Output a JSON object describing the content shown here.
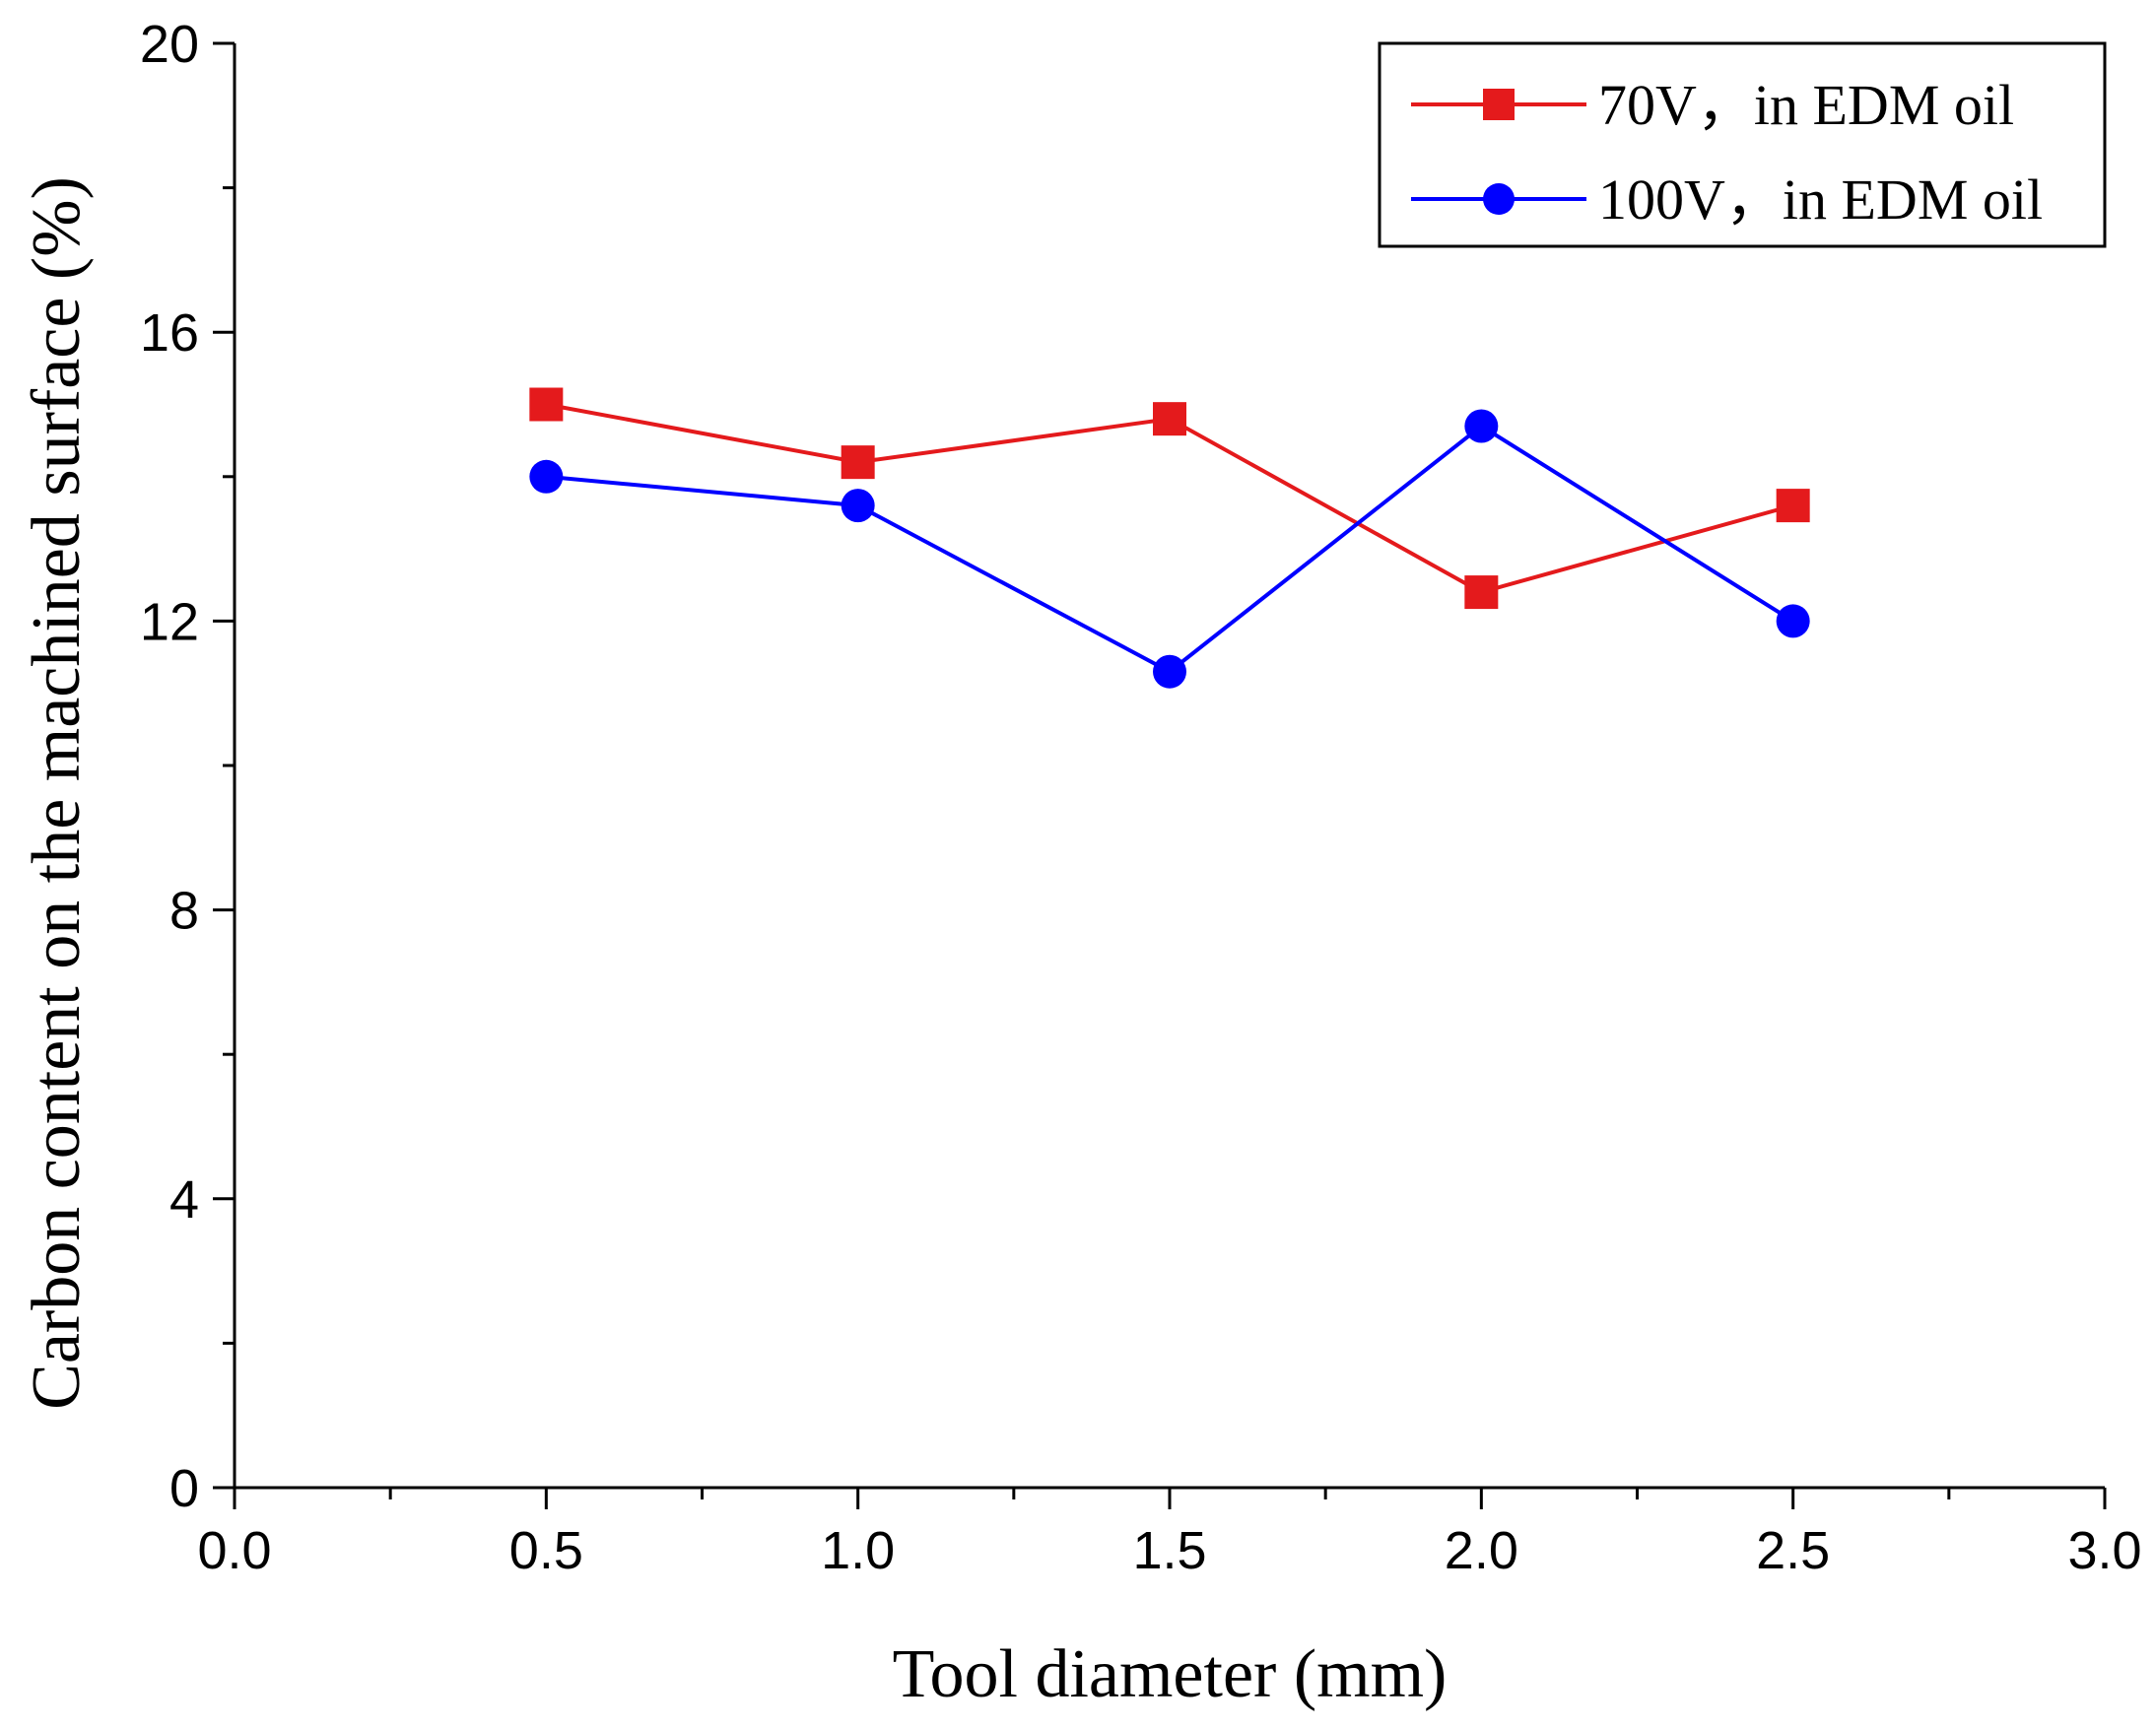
{
  "chart_data": {
    "type": "line",
    "title": "",
    "xlabel": "Tool diameter (mm)",
    "ylabel": "Carbon content on the machined surface (%)",
    "xlim": [
      0.0,
      3.0
    ],
    "ylim": [
      0,
      20
    ],
    "x_ticks": [
      0.0,
      0.5,
      1.0,
      1.5,
      2.0,
      2.5,
      3.0
    ],
    "x_tick_labels": [
      "0.0",
      "0.5",
      "1.0",
      "1.5",
      "2.0",
      "2.5",
      "3.0"
    ],
    "y_ticks": [
      0,
      4,
      8,
      12,
      16,
      20
    ],
    "y_tick_labels": [
      "0",
      "4",
      "8",
      "12",
      "16",
      "20"
    ],
    "grid": false,
    "legend_position": "top-right",
    "series": [
      {
        "name": "70V，in EDM oil",
        "color": "#e41a1c",
        "marker": "square",
        "x": [
          0.5,
          1.0,
          1.5,
          2.0,
          2.5
        ],
        "values": [
          15.0,
          14.2,
          14.8,
          12.4,
          13.6
        ]
      },
      {
        "name": "100V，in EDM oil",
        "color": "#0000ff",
        "marker": "circle",
        "x": [
          0.5,
          1.0,
          1.5,
          2.0,
          2.5
        ],
        "values": [
          14.0,
          13.6,
          11.3,
          14.7,
          12.0
        ]
      }
    ]
  }
}
